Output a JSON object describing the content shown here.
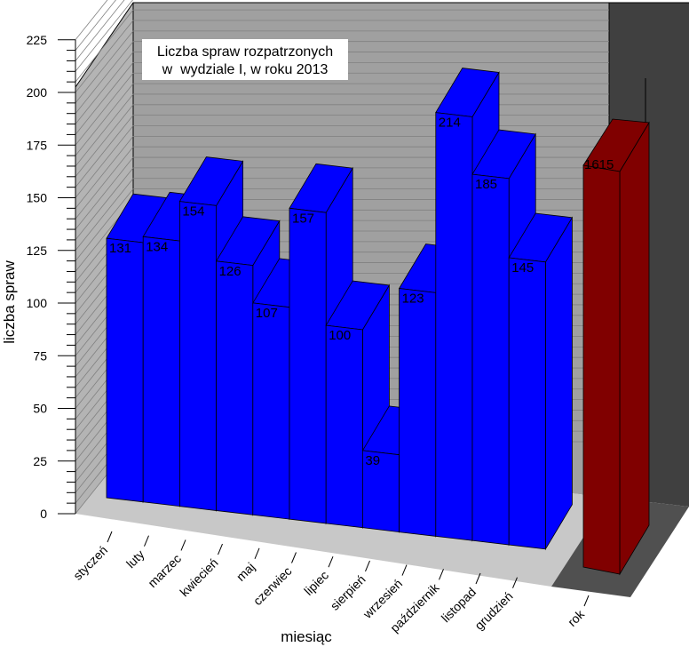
{
  "chart_data": {
    "type": "bar",
    "title_lines": [
      "Liczba spraw rozpatrzonych",
      "w  wydziale I, w roku 2013"
    ],
    "xlabel": "miesiąc",
    "ylabel": "liczba spraw",
    "ylim": [
      0,
      225
    ],
    "yticks": [
      0,
      25,
      50,
      75,
      100,
      125,
      150,
      175,
      200,
      225
    ],
    "categories": [
      "styczeń",
      "luty",
      "marzec",
      "kwiecień",
      "maj",
      "czerwiec",
      "lipiec",
      "sierpień",
      "wrzesień",
      "październik",
      "listopad",
      "grudzień"
    ],
    "values": [
      131,
      134,
      154,
      126,
      107,
      157,
      100,
      39,
      123,
      214,
      185,
      145
    ],
    "total": {
      "category": "rok",
      "value": 1615
    },
    "colors": {
      "bars": "#0000ff",
      "total_bar": "#800000",
      "wall": "#a0a0a0",
      "dark_wall": "#404040",
      "floor": "#c8c8c8"
    }
  }
}
